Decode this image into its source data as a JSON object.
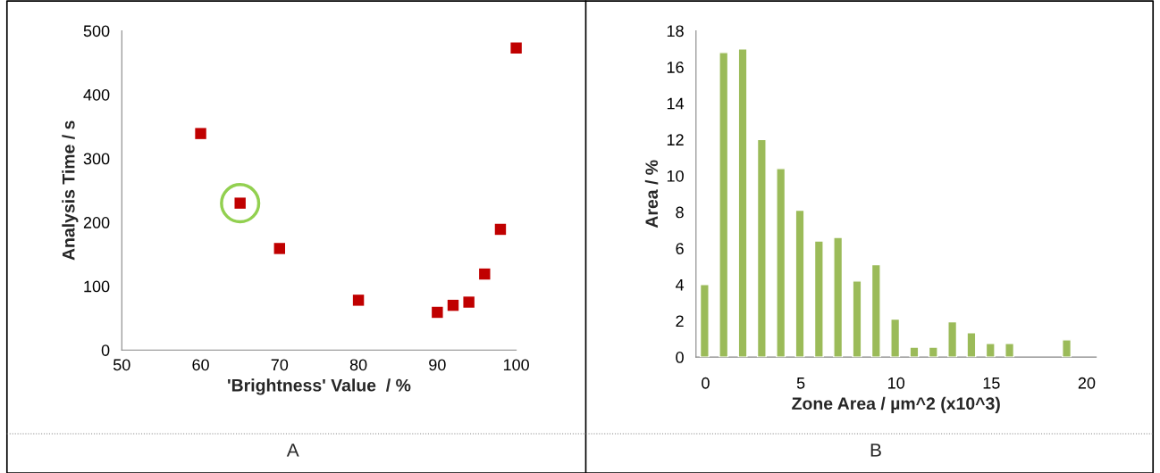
{
  "chart_data": [
    {
      "type": "scatter",
      "xlabel": "'Brightness' Value  / %",
      "ylabel": "Analysis Time / s",
      "annotations": [
        "A"
      ],
      "xlim": [
        50,
        100
      ],
      "xticks": [
        50,
        60,
        70,
        80,
        90,
        100
      ],
      "ylim": [
        0,
        500
      ],
      "yticks": [
        0,
        100,
        200,
        300,
        400,
        500
      ],
      "grid": false,
      "legend": false,
      "series": [
        {
          "marker": "square",
          "color": "#c00000",
          "x": [
            60,
            65,
            70,
            80,
            90,
            92,
            94,
            96,
            98,
            100
          ],
          "values": [
            339,
            230,
            159,
            78,
            59,
            70,
            75,
            119,
            189,
            473
          ]
        },
        {
          "marker": "circle",
          "color": "#92d050",
          "x": [
            65
          ],
          "values": [
            230
          ]
        }
      ]
    },
    {
      "type": "bar",
      "xlabel": "Zone Area / µm^2 (x10^3)",
      "ylabel": "Area / %",
      "annotations": [
        "B"
      ],
      "categories": [
        "0",
        null,
        null,
        null,
        null,
        "5",
        null,
        null,
        null,
        null,
        "10",
        null,
        null,
        null,
        null,
        "15",
        null,
        null,
        null,
        null,
        "20"
      ],
      "ylim": [
        0,
        18
      ],
      "yticks": [
        0,
        2,
        4,
        6,
        8,
        10,
        12,
        14,
        16,
        18
      ],
      "grid": false,
      "legend": false,
      "series": [
        {
          "color": "#9bbb59",
          "values": [
            4.0,
            16.8,
            17.0,
            12.0,
            10.4,
            8.1,
            6.4,
            6.6,
            4.2,
            5.1,
            2.1,
            0.55,
            0.55,
            1.95,
            1.35,
            0.75,
            0.75,
            null,
            null,
            0.95,
            null
          ]
        }
      ]
    }
  ]
}
